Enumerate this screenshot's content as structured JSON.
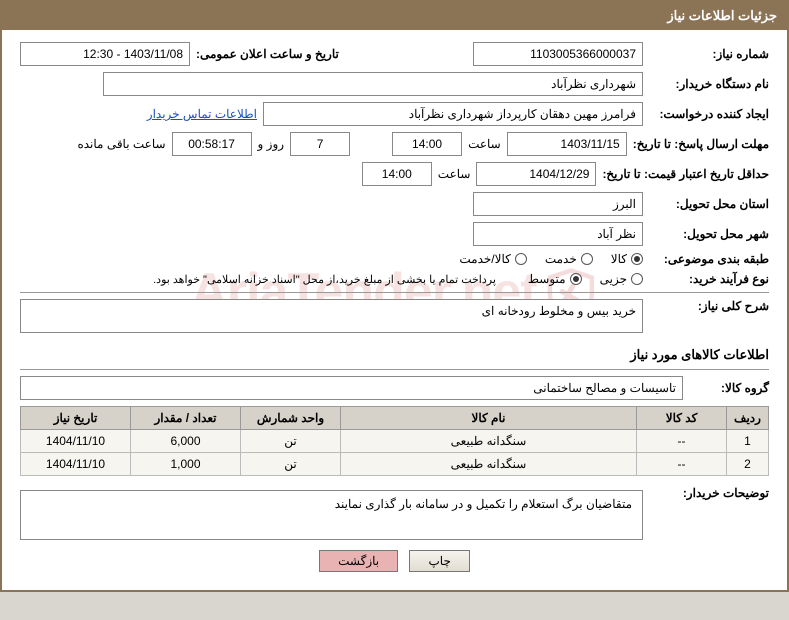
{
  "header_title": "جزئیات اطلاعات نیاز",
  "labels": {
    "need_no": "شماره نیاز:",
    "public_date": "تاریخ و ساعت اعلان عمومی:",
    "buyer_org": "نام دستگاه خریدار:",
    "requester": "ایجاد کننده درخواست:",
    "buyer_contact": "اطلاعات تماس خریدار",
    "response_deadline": "مهلت ارسال پاسخ: تا تاریخ:",
    "time_word": "ساعت",
    "days_and": "روز و",
    "time_remaining": "ساعت باقی مانده",
    "min_validity": "حداقل تاریخ اعتبار قیمت: تا تاریخ:",
    "delivery_province": "استان محل تحویل:",
    "delivery_city": "شهر محل تحویل:",
    "subject_class": "طبقه بندی موضوعی:",
    "purchase_type": "نوع فرآیند خرید:",
    "payment_note": "پرداخت تمام یا بخشی از مبلغ خرید،از محل \"اسناد خزانه اسلامی\" خواهد بود.",
    "need_summary": "شرح کلی نیاز:",
    "goods_info": "اطلاعات کالاهای مورد نیاز",
    "goods_group": "گروه کالا:",
    "buyer_notes": "توضیحات خریدار:"
  },
  "fields": {
    "need_no": "1103005366000037",
    "public_date": "1403/11/08 - 12:30",
    "buyer_org": "شهرداری نظرآباد",
    "requester": "فرامرز مهین دهقان کارپرداز شهرداری نظرآباد",
    "resp_date": "1403/11/15",
    "resp_time": "14:00",
    "days_left": "7",
    "time_left": "00:58:17",
    "validity_date": "1404/12/29",
    "validity_time": "14:00",
    "province": "البرز",
    "city": "نظر آباد",
    "need_summary": "خرید بیس و مخلوط رودخانه ای",
    "goods_group": "تاسیسات و مصالح ساختمانی",
    "buyer_notes": "متقاضیان برگ استعلام را تکمیل و در سامانه بار گذاری نمایند"
  },
  "radios": {
    "subject": [
      {
        "label": "کالا",
        "checked": true
      },
      {
        "label": "خدمت",
        "checked": false
      },
      {
        "label": "کالا/خدمت",
        "checked": false
      }
    ],
    "purchase": [
      {
        "label": "جزیی",
        "checked": false
      },
      {
        "label": "متوسط",
        "checked": true
      }
    ]
  },
  "table": {
    "columns": [
      "ردیف",
      "کد کالا",
      "نام کالا",
      "واحد شمارش",
      "تعداد / مقدار",
      "تاریخ نیاز"
    ],
    "rows": [
      [
        "1",
        "--",
        "سنگدانه طبیعی",
        "تن",
        "6,000",
        "1404/11/10"
      ],
      [
        "2",
        "--",
        "سنگدانه طبیعی",
        "تن",
        "1,000",
        "1404/11/10"
      ]
    ],
    "col_widths": [
      "42px",
      "90px",
      "auto",
      "100px",
      "110px",
      "110px"
    ]
  },
  "buttons": {
    "print": "چاپ",
    "back": "بازگشت"
  },
  "watermark": "AriaTender.net",
  "styling": {
    "header_bg": "#8b7355",
    "header_fg": "#ffffff",
    "page_bg": "#d9d6cf",
    "border_color": "#8b7355",
    "field_border": "#888888",
    "th_bg": "#d6d2c9",
    "td_bg": "#f7f5f0",
    "link_color": "#1a4fc7",
    "watermark_color": "rgba(200,60,60,0.15)",
    "font_size_base": 12,
    "font_family": "Tahoma"
  }
}
